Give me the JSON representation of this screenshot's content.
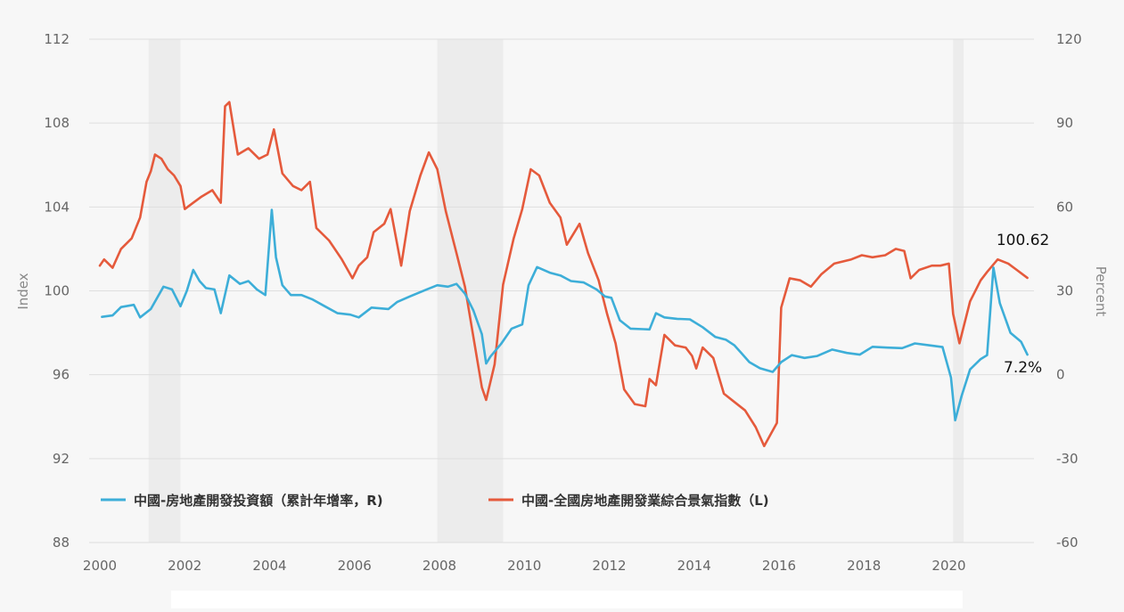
{
  "chart_data": {
    "type": "line",
    "title": "",
    "ylabel_left": "Index",
    "ylabel_right": "Percent",
    "ylim_left": [
      88,
      112
    ],
    "ylim_right": [
      -60,
      120
    ],
    "xlim": [
      2000.0,
      2021.9
    ],
    "yticks_left": [
      "112",
      "108",
      "104",
      "100",
      "96",
      "92",
      "88"
    ],
    "yticks_right": [
      "120",
      "90",
      "60",
      "30",
      "0",
      "-30",
      "-60"
    ],
    "xticks": [
      "2000",
      "2002",
      "2004",
      "2006",
      "2008",
      "2010",
      "2012",
      "2014",
      "2016",
      "2018",
      "2020"
    ],
    "grid": "horizontal",
    "legend_position": "bottom-left",
    "recession_shading": [
      [
        2001.15,
        2001.9
      ],
      [
        2007.95,
        2009.5
      ],
      [
        2020.1,
        2020.35
      ]
    ],
    "series": [
      {
        "name": "中國-房地產開發投資額（累計年增率，R)",
        "axis": "right",
        "color": "#3daed8",
        "points": [
          [
            2000.05,
            20.7
          ],
          [
            2000.3,
            21.2
          ],
          [
            2000.5,
            24.2
          ],
          [
            2000.8,
            25.0
          ],
          [
            2000.95,
            20.5
          ],
          [
            2001.2,
            23.5
          ],
          [
            2001.5,
            31.5
          ],
          [
            2001.7,
            30.5
          ],
          [
            2001.9,
            24.5
          ],
          [
            2002.05,
            30.0
          ],
          [
            2002.2,
            37.5
          ],
          [
            2002.35,
            33.5
          ],
          [
            2002.5,
            31.0
          ],
          [
            2002.7,
            30.5
          ],
          [
            2002.85,
            22.0
          ],
          [
            2003.05,
            35.5
          ],
          [
            2003.3,
            32.5
          ],
          [
            2003.5,
            33.5
          ],
          [
            2003.7,
            30.5
          ],
          [
            2003.9,
            28.5
          ],
          [
            2004.05,
            59.0
          ],
          [
            2004.15,
            42.0
          ],
          [
            2004.3,
            32.0
          ],
          [
            2004.5,
            28.5
          ],
          [
            2004.75,
            28.5
          ],
          [
            2005.0,
            27.0
          ],
          [
            2005.3,
            24.5
          ],
          [
            2005.6,
            22.0
          ],
          [
            2005.9,
            21.5
          ],
          [
            2006.1,
            20.5
          ],
          [
            2006.4,
            24.0
          ],
          [
            2006.8,
            23.5
          ],
          [
            2007.0,
            26.0
          ],
          [
            2007.3,
            28.0
          ],
          [
            2007.7,
            30.5
          ],
          [
            2007.95,
            32.0
          ],
          [
            2008.2,
            31.5
          ],
          [
            2008.4,
            32.5
          ],
          [
            2008.6,
            29.0
          ],
          [
            2008.8,
            23.0
          ],
          [
            2009.0,
            14.5
          ],
          [
            2009.1,
            4.0
          ],
          [
            2009.2,
            6.5
          ],
          [
            2009.45,
            11.0
          ],
          [
            2009.7,
            16.5
          ],
          [
            2009.95,
            18.0
          ],
          [
            2010.1,
            32.0
          ],
          [
            2010.3,
            38.5
          ],
          [
            2010.6,
            36.5
          ],
          [
            2010.85,
            35.5
          ],
          [
            2011.1,
            33.5
          ],
          [
            2011.4,
            33.0
          ],
          [
            2011.7,
            30.5
          ],
          [
            2011.9,
            28.0
          ],
          [
            2012.05,
            27.5
          ],
          [
            2012.25,
            19.5
          ],
          [
            2012.5,
            16.5
          ],
          [
            2012.8,
            16.3
          ],
          [
            2012.95,
            16.2
          ],
          [
            2013.1,
            22.0
          ],
          [
            2013.3,
            20.5
          ],
          [
            2013.6,
            20.0
          ],
          [
            2013.9,
            19.8
          ],
          [
            2014.2,
            17.0
          ],
          [
            2014.5,
            13.5
          ],
          [
            2014.75,
            12.5
          ],
          [
            2014.95,
            10.5
          ],
          [
            2015.1,
            8.0
          ],
          [
            2015.3,
            4.5
          ],
          [
            2015.55,
            2.3
          ],
          [
            2015.85,
            1.0
          ],
          [
            2016.05,
            4.5
          ],
          [
            2016.3,
            7.0
          ],
          [
            2016.6,
            6.0
          ],
          [
            2016.9,
            6.7
          ],
          [
            2017.25,
            9.0
          ],
          [
            2017.6,
            7.8
          ],
          [
            2017.9,
            7.2
          ],
          [
            2018.2,
            10.0
          ],
          [
            2018.55,
            9.7
          ],
          [
            2018.9,
            9.5
          ],
          [
            2019.2,
            11.2
          ],
          [
            2019.55,
            10.5
          ],
          [
            2019.85,
            9.9
          ],
          [
            2020.05,
            -1.0
          ],
          [
            2020.15,
            -16.3
          ],
          [
            2020.3,
            -7.6
          ],
          [
            2020.5,
            1.9
          ],
          [
            2020.75,
            5.6
          ],
          [
            2020.9,
            7.0
          ],
          [
            2021.05,
            38.3
          ],
          [
            2021.2,
            25.6
          ],
          [
            2021.45,
            15.0
          ],
          [
            2021.7,
            11.8
          ],
          [
            2021.85,
            7.2
          ]
        ]
      },
      {
        "name": "中國-全國房地產開發業綜合景氣指數（L)",
        "axis": "left",
        "color": "#e55a3c",
        "points": [
          [
            2000.0,
            101.2
          ],
          [
            2000.1,
            101.5
          ],
          [
            2000.3,
            101.1
          ],
          [
            2000.5,
            102.0
          ],
          [
            2000.75,
            102.5
          ],
          [
            2000.95,
            103.5
          ],
          [
            2001.1,
            105.2
          ],
          [
            2001.2,
            105.7
          ],
          [
            2001.3,
            106.5
          ],
          [
            2001.45,
            106.3
          ],
          [
            2001.6,
            105.8
          ],
          [
            2001.75,
            105.5
          ],
          [
            2001.9,
            105.0
          ],
          [
            2002.0,
            103.9
          ],
          [
            2002.2,
            104.2
          ],
          [
            2002.4,
            104.5
          ],
          [
            2002.65,
            104.8
          ],
          [
            2002.85,
            104.2
          ],
          [
            2002.95,
            108.8
          ],
          [
            2003.05,
            109.0
          ],
          [
            2003.25,
            106.5
          ],
          [
            2003.5,
            106.8
          ],
          [
            2003.75,
            106.3
          ],
          [
            2003.95,
            106.5
          ],
          [
            2004.1,
            107.7
          ],
          [
            2004.3,
            105.6
          ],
          [
            2004.55,
            105.0
          ],
          [
            2004.75,
            104.8
          ],
          [
            2004.95,
            105.2
          ],
          [
            2005.1,
            103.0
          ],
          [
            2005.4,
            102.4
          ],
          [
            2005.7,
            101.5
          ],
          [
            2005.95,
            100.6
          ],
          [
            2006.1,
            101.2
          ],
          [
            2006.3,
            101.6
          ],
          [
            2006.45,
            102.8
          ],
          [
            2006.7,
            103.2
          ],
          [
            2006.85,
            103.9
          ],
          [
            2007.1,
            101.2
          ],
          [
            2007.3,
            103.8
          ],
          [
            2007.55,
            105.5
          ],
          [
            2007.75,
            106.6
          ],
          [
            2007.95,
            105.8
          ],
          [
            2008.15,
            103.8
          ],
          [
            2008.4,
            101.8
          ],
          [
            2008.6,
            100.2
          ],
          [
            2008.8,
            97.8
          ],
          [
            2009.0,
            95.4
          ],
          [
            2009.1,
            94.8
          ],
          [
            2009.3,
            96.5
          ],
          [
            2009.5,
            100.3
          ],
          [
            2009.75,
            102.5
          ],
          [
            2009.95,
            103.9
          ],
          [
            2010.15,
            105.8
          ],
          [
            2010.35,
            105.5
          ],
          [
            2010.6,
            104.2
          ],
          [
            2010.85,
            103.5
          ],
          [
            2011.0,
            102.2
          ],
          [
            2011.3,
            103.2
          ],
          [
            2011.5,
            101.8
          ],
          [
            2011.75,
            100.5
          ],
          [
            2011.95,
            98.9
          ],
          [
            2012.15,
            97.5
          ],
          [
            2012.35,
            95.3
          ],
          [
            2012.6,
            94.6
          ],
          [
            2012.85,
            94.5
          ],
          [
            2012.95,
            95.8
          ],
          [
            2013.1,
            95.5
          ],
          [
            2013.3,
            97.9
          ],
          [
            2013.55,
            97.4
          ],
          [
            2013.8,
            97.3
          ],
          [
            2013.95,
            96.9
          ],
          [
            2014.05,
            96.3
          ],
          [
            2014.2,
            97.3
          ],
          [
            2014.45,
            96.8
          ],
          [
            2014.7,
            95.1
          ],
          [
            2014.95,
            94.7
          ],
          [
            2015.2,
            94.3
          ],
          [
            2015.45,
            93.5
          ],
          [
            2015.65,
            92.6
          ],
          [
            2015.95,
            93.7
          ],
          [
            2016.05,
            99.2
          ],
          [
            2016.25,
            100.6
          ],
          [
            2016.5,
            100.5
          ],
          [
            2016.75,
            100.2
          ],
          [
            2017.0,
            100.8
          ],
          [
            2017.3,
            101.3
          ],
          [
            2017.7,
            101.5
          ],
          [
            2017.95,
            101.7
          ],
          [
            2018.2,
            101.6
          ],
          [
            2018.5,
            101.7
          ],
          [
            2018.75,
            102.0
          ],
          [
            2018.95,
            101.9
          ],
          [
            2019.1,
            100.6
          ],
          [
            2019.3,
            101.0
          ],
          [
            2019.6,
            101.2
          ],
          [
            2019.8,
            101.2
          ],
          [
            2020.0,
            101.3
          ],
          [
            2020.1,
            98.9
          ],
          [
            2020.25,
            97.5
          ],
          [
            2020.5,
            99.5
          ],
          [
            2020.75,
            100.5
          ],
          [
            2020.9,
            100.9
          ],
          [
            2021.15,
            101.5
          ],
          [
            2021.4,
            101.3
          ],
          [
            2021.6,
            101.0
          ],
          [
            2021.85,
            100.62
          ]
        ]
      }
    ],
    "annotations": [
      {
        "text": "100.62",
        "series": 1,
        "x": 2021.85,
        "y": 100.62
      },
      {
        "text": "7.2%",
        "series": 0,
        "x": 2021.85,
        "y": 7.2
      }
    ]
  }
}
